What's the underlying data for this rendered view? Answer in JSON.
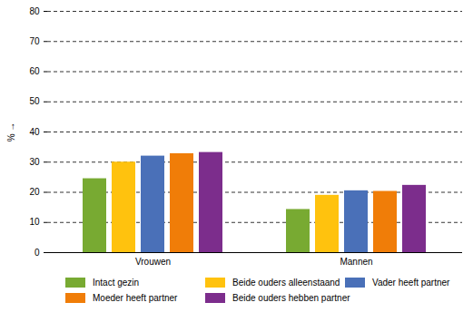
{
  "chart_data": {
    "type": "bar",
    "y_label": "%",
    "categories": [
      "Vrouwen",
      "Mannen"
    ],
    "series": [
      {
        "name": "Intact gezin",
        "color": "#78aa32",
        "values": [
          24.5,
          14.3
        ]
      },
      {
        "name": "Beide ouders alleenstaand",
        "color": "#ffc20e",
        "values": [
          30,
          19
        ]
      },
      {
        "name": "Vader heeft partner",
        "color": "#4a70b8",
        "values": [
          32,
          20.5
        ]
      },
      {
        "name": "Moeder heeft partner",
        "color": "#f07d08",
        "values": [
          32.8,
          20.3
        ]
      },
      {
        "name": "Beide ouders hebben partner",
        "color": "#7c2d8c",
        "values": [
          33.2,
          22.3
        ]
      }
    ],
    "ylim": [
      0,
      80
    ],
    "yticks": [
      0,
      10,
      20,
      30,
      40,
      50,
      60,
      70,
      80
    ],
    "grid": true,
    "legend": "bottom"
  }
}
